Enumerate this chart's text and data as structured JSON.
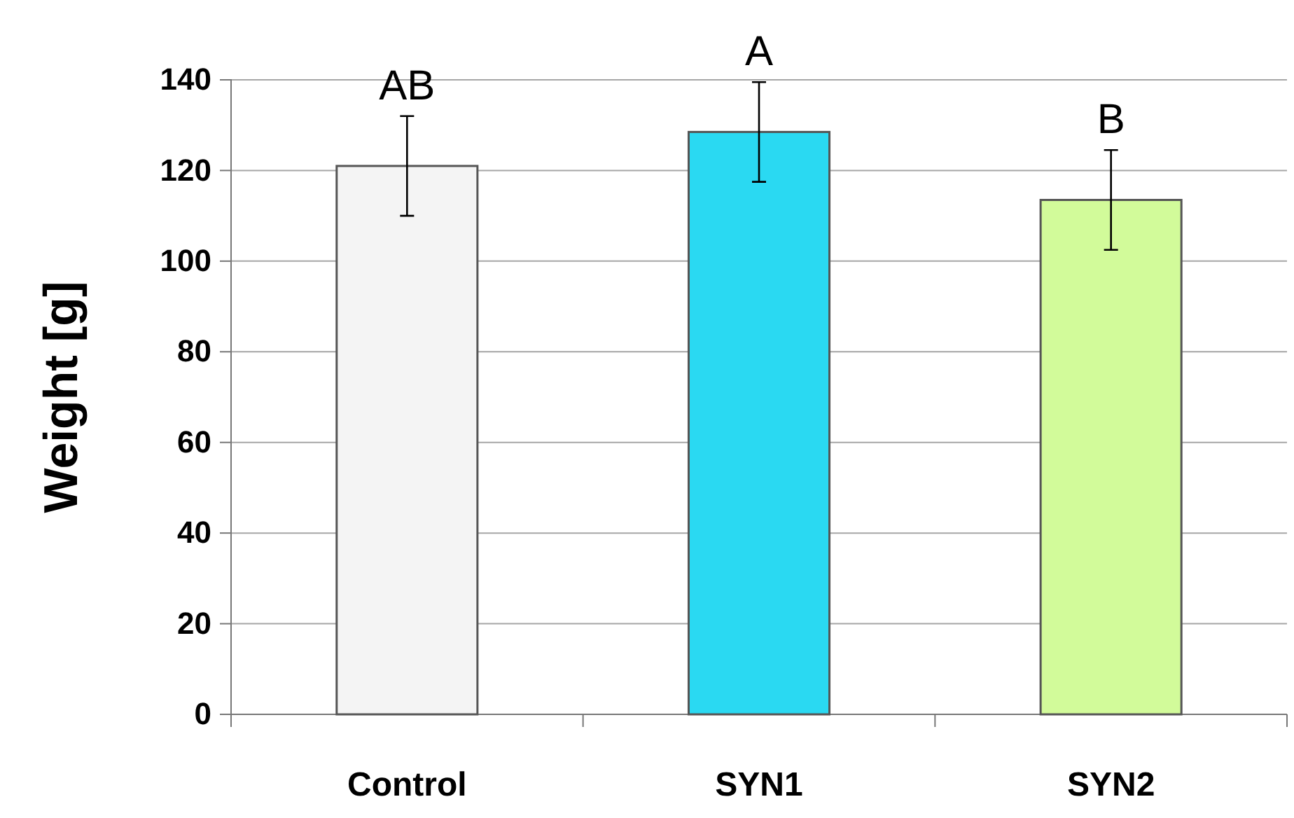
{
  "chart_data": {
    "type": "bar",
    "ylabel": "Weight [g]",
    "categories": [
      "Control",
      "SYN1",
      "SYN2"
    ],
    "values": [
      121,
      128.5,
      113.5
    ],
    "colors": [
      "#f4f4f4",
      "#2ad9f2",
      "#d2fb9a"
    ],
    "errors": [
      11,
      11,
      11
    ],
    "ylim": [
      0,
      140
    ],
    "yticks": [
      0,
      20,
      40,
      60,
      80,
      100,
      120,
      140
    ],
    "grid": "y",
    "annotations": [
      "AB",
      "A",
      "B"
    ]
  }
}
